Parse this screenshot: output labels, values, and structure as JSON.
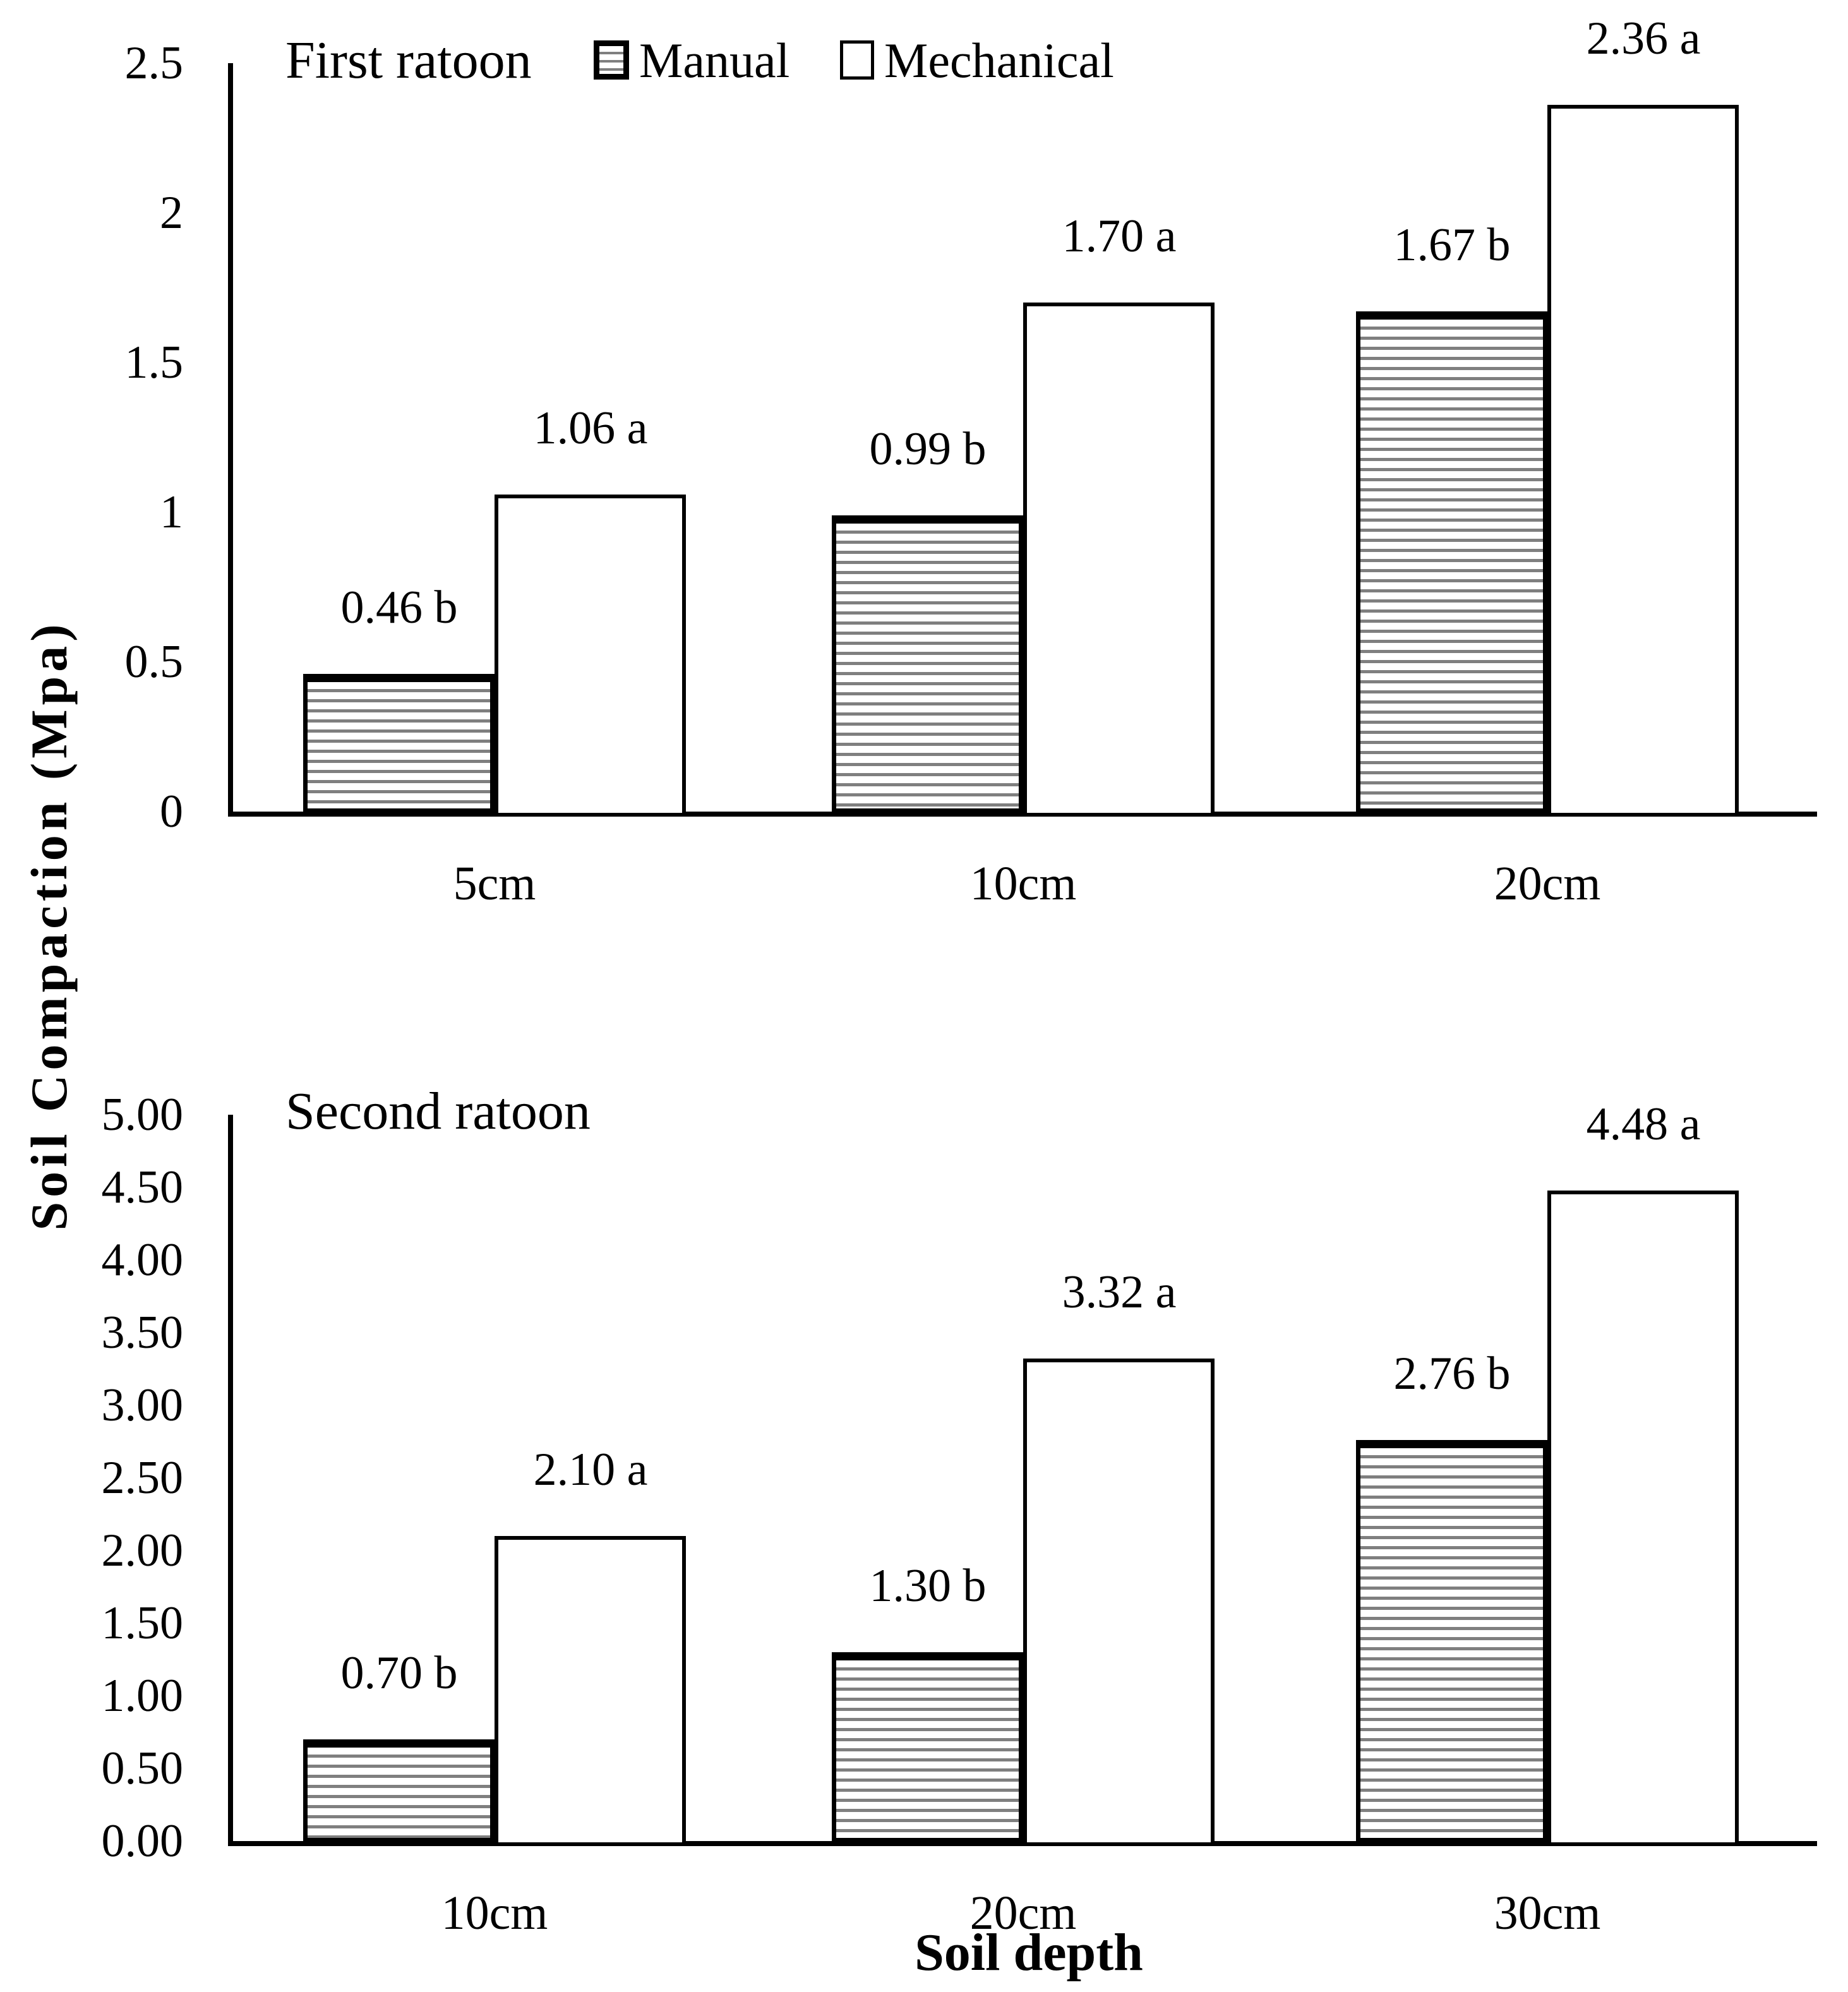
{
  "figure": {
    "y_axis_label": "Soil Compaction (Mpa)",
    "x_axis_label": "Soil depth",
    "background": "#ffffff"
  },
  "legend": {
    "position": "top-inside-first-chart",
    "items": [
      {
        "label": "Manual",
        "swatch": "hatched-horizontal-lines"
      },
      {
        "label": "Mechanical",
        "swatch": "open-white"
      }
    ]
  },
  "colors": {
    "foreground": "#000000",
    "hatch_line": "#7f7f7f",
    "background": "#ffffff"
  },
  "chart_data": [
    {
      "type": "bar",
      "title": "First ratoon",
      "xlabel": "Soil depth",
      "ylabel": "Soil Compaction (Mpa)",
      "categories": [
        "5cm",
        "10cm",
        "20cm"
      ],
      "series": [
        {
          "name": "Manual",
          "style": "hatched-horizontal",
          "values": [
            0.46,
            0.99,
            1.67
          ],
          "value_labels": [
            "0.46 b",
            "0.99 b",
            "1.67 b"
          ]
        },
        {
          "name": "Mechanical",
          "style": "open-white",
          "values": [
            1.06,
            1.7,
            2.36
          ],
          "value_labels": [
            "1.06 a",
            "1.70 a",
            "2.36 a"
          ]
        }
      ],
      "ylim": [
        0,
        2.5
      ],
      "y_tick_values": [
        2.5,
        2,
        1.5,
        1,
        0.5,
        0
      ],
      "y_tick_labels": [
        "2.5",
        "2",
        "1.5",
        "1",
        "0.5",
        "0"
      ],
      "grid": "off",
      "legend_shown": true
    },
    {
      "type": "bar",
      "title": "Second ratoon",
      "xlabel": "Soil depth",
      "ylabel": "Soil Compaction (Mpa)",
      "categories": [
        "10cm",
        "20cm",
        "30cm"
      ],
      "series": [
        {
          "name": "Manual",
          "style": "hatched-horizontal",
          "values": [
            0.7,
            1.3,
            2.76
          ],
          "value_labels": [
            "0.70 b",
            "1.30 b",
            "2.76 b"
          ]
        },
        {
          "name": "Mechanical",
          "style": "open-white",
          "values": [
            2.1,
            3.32,
            4.48
          ],
          "value_labels": [
            "2.10 a",
            "3.32 a",
            "4.48 a"
          ]
        }
      ],
      "ylim": [
        0,
        5
      ],
      "y_tick_values": [
        5,
        4.5,
        4,
        3.5,
        3,
        2.5,
        2,
        1.5,
        1,
        0.5,
        0
      ],
      "y_tick_labels": [
        "5.00",
        "4.50",
        "4.00",
        "3.50",
        "3.00",
        "2.50",
        "2.00",
        "1.50",
        "1.00",
        "0.50",
        "0.00"
      ],
      "grid": "off",
      "legend_shown": false
    }
  ]
}
